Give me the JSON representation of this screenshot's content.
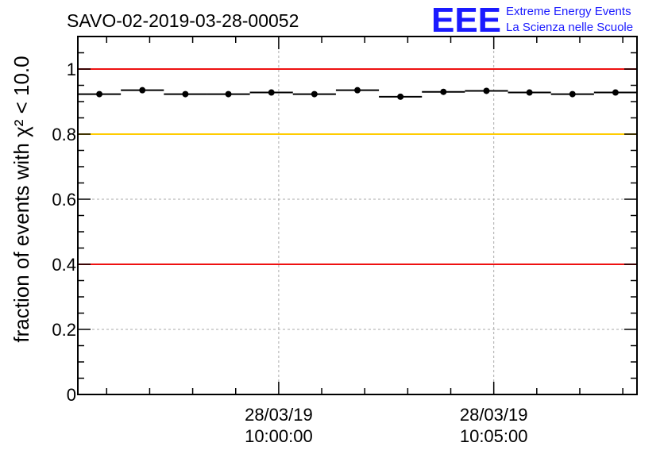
{
  "header": {
    "title": "SAVO-02-2019-03-28-00052",
    "logo_text": "EEE",
    "logo_line1": "Extreme Energy Events",
    "logo_line2": "La Scienza nelle Scuole"
  },
  "chart_data": {
    "type": "scatter",
    "title": "SAVO-02-2019-03-28-00052",
    "ylabel": "fraction of events with χ² < 10.0",
    "xlabel": "",
    "ylim": [
      0,
      1.1
    ],
    "yticks": [
      0,
      0.2,
      0.4,
      0.6,
      0.8,
      1
    ],
    "ytick_labels": [
      "0",
      "0.2",
      "0.4",
      "0.6",
      "0.8",
      "1"
    ],
    "x_time_labels": [
      {
        "date": "28/03/19",
        "time": "10:00:00",
        "minute_offset": 4.67
      },
      {
        "date": "28/03/19",
        "time": "10:05:00",
        "minute_offset": 9.67
      }
    ],
    "xlim_minutes": [
      0,
      13.0
    ],
    "bin_width_minutes": 1.0,
    "grid": true,
    "reference_lines": [
      {
        "y": 1.0,
        "color": "#ee1111"
      },
      {
        "y": 0.8,
        "color": "#ffcc00"
      },
      {
        "y": 0.4,
        "color": "#ee1111"
      }
    ],
    "series": [
      {
        "name": "fraction",
        "x_minutes": [
          0.5,
          1.5,
          2.5,
          3.5,
          4.5,
          5.5,
          6.5,
          7.5,
          8.5,
          9.5,
          10.5,
          11.5,
          12.5
        ],
        "values": [
          0.923,
          0.935,
          0.923,
          0.923,
          0.928,
          0.923,
          0.935,
          0.915,
          0.93,
          0.933,
          0.928,
          0.923,
          0.928
        ]
      }
    ],
    "colors": {
      "axis": "#000000",
      "marker": "#000000",
      "grid": "#aaaaaa",
      "logo": "#1a1aff"
    }
  }
}
